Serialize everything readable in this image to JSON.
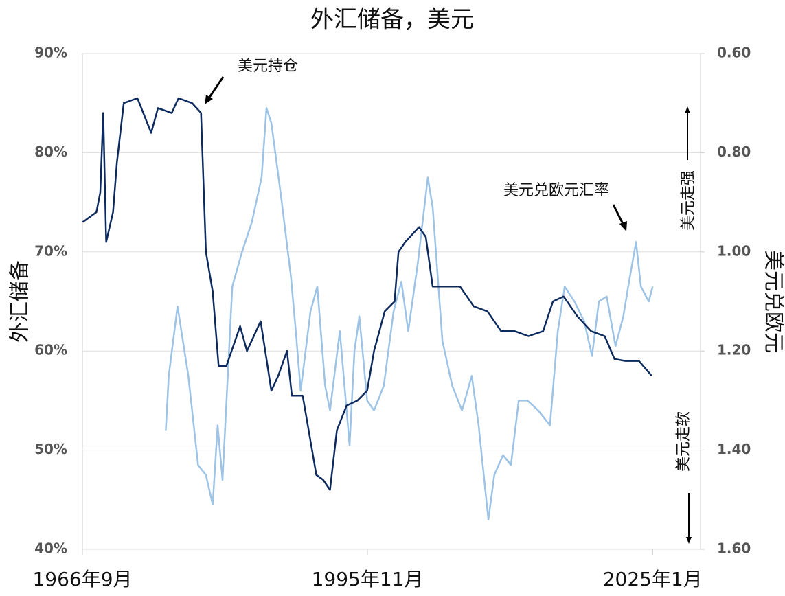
{
  "chart_data": {
    "type": "line",
    "title": "外汇储备，美元",
    "y_label": "外汇储备",
    "y2_label": "美元兑欧元",
    "annotations": [
      "美元持仓",
      "美元兑欧元汇率",
      "美元走强",
      "美元走软"
    ],
    "xlim": [
      1966.67,
      2029.9
    ],
    "xticks": [
      {
        "value": 1966.67,
        "label": "1966年9月"
      },
      {
        "value": 1995.83,
        "label": "1995年11月"
      },
      {
        "value": 2025.0,
        "label": "2025年1月"
      }
    ],
    "ylim": [
      40,
      90
    ],
    "yticks": [
      {
        "value": 40,
        "label": "40%"
      },
      {
        "value": 50,
        "label": "50%"
      },
      {
        "value": 60,
        "label": "60%"
      },
      {
        "value": 70,
        "label": "70%"
      },
      {
        "value": 80,
        "label": "80%"
      },
      {
        "value": 90,
        "label": "90%"
      }
    ],
    "y2lim": [
      0.6,
      1.6
    ],
    "y2_reversed": true,
    "y2ticks": [
      {
        "value": 0.6,
        "label": "0.60"
      },
      {
        "value": 0.8,
        "label": "0.80"
      },
      {
        "value": 1.0,
        "label": "1.00"
      },
      {
        "value": 1.2,
        "label": "1.20"
      },
      {
        "value": 1.4,
        "label": "1.40"
      },
      {
        "value": 1.6,
        "label": "1.60"
      }
    ],
    "grid": true,
    "series": [
      {
        "name": "美元持仓",
        "color": "#0d2a5e",
        "x": [
          1966.7,
          1968.1,
          1968.5,
          1968.8,
          1969.1,
          1969.8,
          1970.2,
          1970.9,
          1972.3,
          1973.7,
          1974.4,
          1975.8,
          1976.5,
          1977.9,
          1978.8,
          1979.3,
          1980.0,
          1980.6,
          1981.4,
          1982.8,
          1983.5,
          1984.9,
          1986.0,
          1986.7,
          1987.6,
          1988.1,
          1989.2,
          1990.6,
          1991.3,
          1992.0,
          1992.7,
          1993.7,
          1994.8,
          1995.8,
          1996.5,
          1997.6,
          1998.6,
          1999.0,
          1999.7,
          2001.1,
          2001.8,
          2002.5,
          2003.9,
          2005.3,
          2006.7,
          2008.1,
          2009.5,
          2010.9,
          2012.3,
          2013.8,
          2014.8,
          2015.9,
          2017.3,
          2018.7,
          2020.1,
          2021.1,
          2022.2,
          2023.6,
          2024.9
        ],
        "values": [
          73,
          74,
          76,
          84,
          71,
          74,
          79,
          85,
          85.5,
          82,
          84.5,
          84,
          85.5,
          85,
          84,
          70,
          66,
          58.5,
          58.5,
          62.5,
          60,
          63,
          56,
          57.5,
          60,
          55.5,
          55.5,
          47.5,
          47,
          46,
          52,
          54.5,
          55,
          56,
          60,
          64,
          65,
          70,
          71,
          72.5,
          71.5,
          66.5,
          66.5,
          66.5,
          64.5,
          64,
          62,
          62,
          61.5,
          62,
          65,
          65.5,
          63.5,
          62,
          61.5,
          59.2,
          59,
          59,
          57.5
        ]
      },
      {
        "name": "美元兑欧元汇率",
        "color": "#9dc3e6",
        "axis": "y2",
        "x": [
          1975.2,
          1975.5,
          1976.4,
          1977.5,
          1978.5,
          1979.3,
          1980.0,
          1980.5,
          1981.0,
          1982.0,
          1983.0,
          1984.0,
          1985.0,
          1985.5,
          1986.0,
          1987.0,
          1988.0,
          1988.5,
          1989.0,
          1990.0,
          1990.7,
          1991.5,
          1992.0,
          1993.0,
          1994.0,
          1994.5,
          1995.0,
          1995.8,
          1996.5,
          1997.5,
          1998.5,
          1999.3,
          2000.0,
          2001.0,
          2002.0,
          2002.5,
          2003.5,
          2004.5,
          2005.5,
          2006.5,
          2007.2,
          2008.2,
          2008.8,
          2009.7,
          2010.5,
          2011.3,
          2012.2,
          2013.3,
          2014.5,
          2015.3,
          2016.0,
          2017.0,
          2018.0,
          2018.8,
          2019.5,
          2020.3,
          2021.2,
          2022.0,
          2022.5,
          2023.3,
          2023.8,
          2024.6,
          2025.0
        ],
        "values": [
          1.36,
          1.25,
          1.11,
          1.25,
          1.43,
          1.45,
          1.51,
          1.35,
          1.46,
          1.07,
          1.0,
          0.94,
          0.85,
          0.71,
          0.74,
          0.89,
          1.05,
          1.16,
          1.28,
          1.12,
          1.07,
          1.27,
          1.32,
          1.16,
          1.39,
          1.2,
          1.13,
          1.3,
          1.32,
          1.27,
          1.12,
          1.06,
          1.16,
          1.02,
          0.85,
          0.91,
          1.18,
          1.27,
          1.32,
          1.25,
          1.35,
          1.54,
          1.45,
          1.41,
          1.43,
          1.3,
          1.3,
          1.32,
          1.35,
          1.16,
          1.07,
          1.1,
          1.14,
          1.21,
          1.1,
          1.09,
          1.19,
          1.13,
          1.07,
          0.98,
          1.07,
          1.1,
          1.07
        ]
      }
    ]
  }
}
